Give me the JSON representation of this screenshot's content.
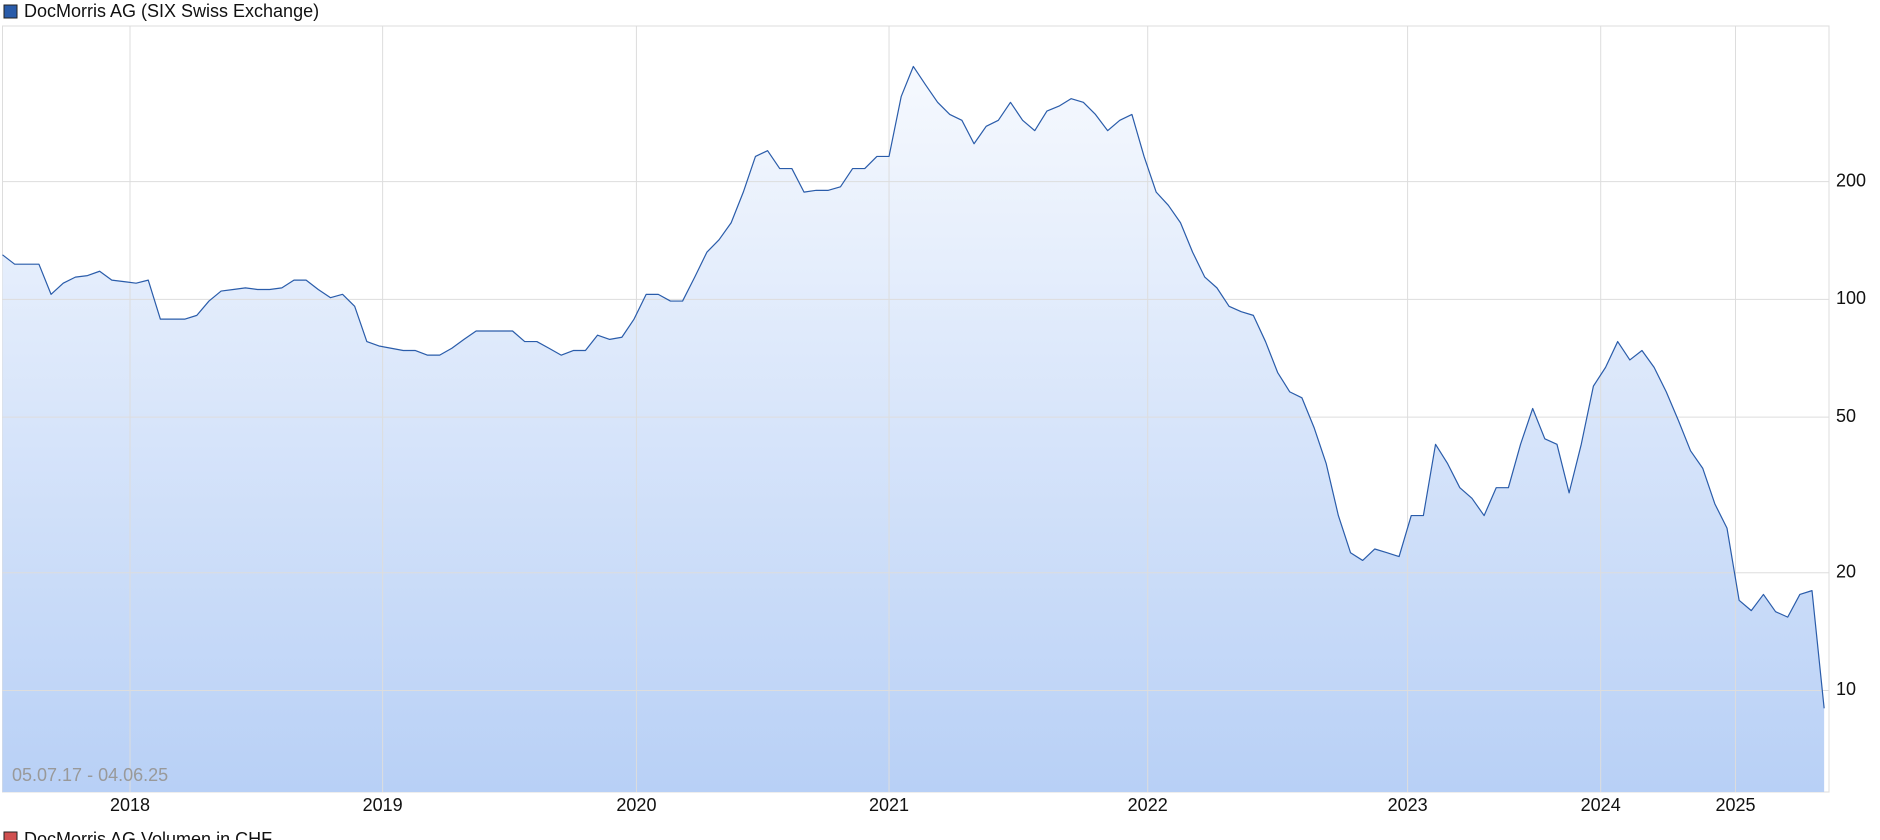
{
  "chart_data": {
    "type": "area",
    "period": "05.07.17 - 04.06.25",
    "series": [
      {
        "name": "DocMorris AG (SIX Swiss Exchange)",
        "color": "#2a5caa",
        "values": [
          130,
          123,
          123,
          123,
          103,
          110,
          114,
          115,
          118,
          112,
          111,
          110,
          112,
          89,
          89,
          89,
          91,
          99,
          105,
          106,
          107,
          106,
          106,
          107,
          112,
          112,
          106,
          101,
          103,
          96,
          78,
          76,
          75,
          74,
          74,
          72,
          72,
          75,
          79,
          83,
          83,
          83,
          83,
          78,
          78,
          75,
          72,
          74,
          74,
          81,
          79,
          80,
          89,
          103,
          103,
          99,
          99,
          114,
          132,
          142,
          157,
          188,
          232,
          240,
          216,
          216,
          188,
          190,
          190,
          194,
          216,
          216,
          232,
          232,
          330,
          394,
          354,
          319,
          297,
          287,
          250,
          277,
          287,
          319,
          287,
          270,
          303,
          312,
          326,
          319,
          297,
          270,
          287,
          297,
          232,
          188,
          174,
          157,
          132,
          114,
          107,
          96,
          93,
          91,
          78,
          65,
          58,
          56,
          47,
          38,
          28,
          22.5,
          21.5,
          23,
          22.5,
          22,
          28,
          28,
          42.6,
          38,
          33,
          31,
          28,
          33,
          33,
          42.6,
          52.6,
          44,
          42.6,
          32,
          42.6,
          60,
          67,
          78,
          70,
          74,
          67,
          58,
          49,
          41,
          37,
          30,
          26,
          17,
          16,
          17.6,
          15.9,
          15.4,
          17.6,
          18,
          9
        ]
      }
    ],
    "second_legend": {
      "name": "DocMorris AG Volumen in CHF",
      "color": "#d05050"
    },
    "xlim": [
      0,
      150.4
    ],
    "xticks": [
      {
        "value": 10.5,
        "label": "2018"
      },
      {
        "value": 31.3,
        "label": "2019"
      },
      {
        "value": 52.2,
        "label": "2020"
      },
      {
        "value": 73.0,
        "label": "2021"
      },
      {
        "value": 94.3,
        "label": "2022"
      },
      {
        "value": 115.7,
        "label": "2023"
      },
      {
        "value": 131.6,
        "label": "2024"
      },
      {
        "value": 142.7,
        "label": "2025"
      }
    ],
    "ylim": [
      5.5,
      500
    ],
    "yscale": "log",
    "yticks": [
      10,
      20,
      50,
      100,
      200
    ],
    "grid": true
  }
}
